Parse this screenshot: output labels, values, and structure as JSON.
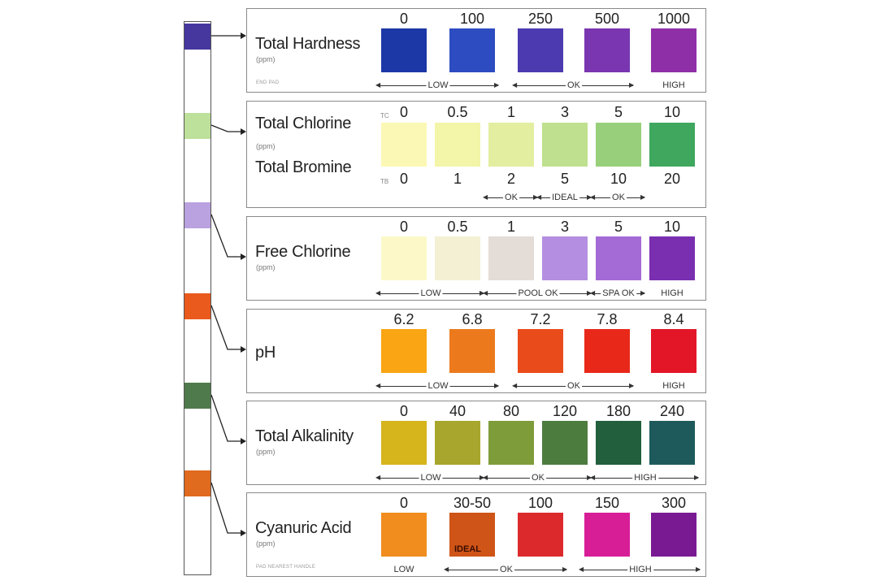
{
  "strip": {
    "pads": [
      {
        "name": "hardness",
        "color": "#46379e"
      },
      {
        "name": "chlorine",
        "color": "#bde09a"
      },
      {
        "name": "free-chlorine",
        "color": "#b9a2df"
      },
      {
        "name": "ph",
        "color": "#ea5a1c"
      },
      {
        "name": "alkalinity",
        "color": "#4f7a4b"
      },
      {
        "name": "cyanuric",
        "color": "#e06a1e"
      }
    ]
  },
  "panels": [
    {
      "id": "total-hardness",
      "title": "Total Hardness",
      "unit": "(ppm)",
      "note": "END PAD",
      "values": [
        "0",
        "100",
        "250",
        "500",
        "1000"
      ],
      "colors": [
        "#1c37a6",
        "#2e4cc1",
        "#4c3ab0",
        "#7a36b0",
        "#8f2fa8"
      ],
      "ranges": [
        {
          "label": "LOW",
          "from": 0,
          "to": 1
        },
        {
          "label": "OK",
          "from": 2,
          "to": 3
        },
        {
          "label": "HIGH",
          "from": 4,
          "to": 4
        }
      ]
    },
    {
      "id": "total-chlorine",
      "title": "Total Chlorine",
      "unit": "(ppm)",
      "title2": "Total Bromine",
      "tag_top": "TC",
      "tag_bottom": "TB",
      "values": [
        "0",
        "0.5",
        "1",
        "3",
        "5",
        "10"
      ],
      "values_bottom": [
        "0",
        "1",
        "2",
        "5",
        "10",
        "20"
      ],
      "colors": [
        "#fbf8b5",
        "#f3f5a8",
        "#e3eea0",
        "#bfe08e",
        "#98cf7a",
        "#3fa75e"
      ],
      "ranges": [
        {
          "label": "OK",
          "from": 2,
          "to": 2
        },
        {
          "label": "IDEAL",
          "from": 3,
          "to": 3
        },
        {
          "label": "OK",
          "from": 4,
          "to": 4
        }
      ]
    },
    {
      "id": "free-chlorine",
      "title": "Free Chlorine",
      "unit": "(ppm)",
      "values": [
        "0",
        "0.5",
        "1",
        "3",
        "5",
        "10"
      ],
      "colors": [
        "#fcf8c8",
        "#f3f0d4",
        "#e4dcd6",
        "#b48ee0",
        "#a46ad5",
        "#7a2fb0"
      ],
      "ranges": [
        {
          "label": "LOW",
          "from": 0,
          "to": 1
        },
        {
          "label": "POOL OK",
          "from": 2,
          "to": 3
        },
        {
          "label": "SPA OK",
          "from": 4,
          "to": 4
        },
        {
          "label": "HIGH",
          "from": 5,
          "to": 5
        }
      ]
    },
    {
      "id": "ph",
      "title": "pH",
      "unit": "",
      "values": [
        "6.2",
        "6.8",
        "7.2",
        "7.8",
        "8.4"
      ],
      "colors": [
        "#f9a514",
        "#ec7a1d",
        "#ea4b1a",
        "#e8291a",
        "#e31627"
      ],
      "ranges": [
        {
          "label": "LOW",
          "from": 0,
          "to": 1
        },
        {
          "label": "OK",
          "from": 2,
          "to": 3
        },
        {
          "label": "HIGH",
          "from": 4,
          "to": 4
        }
      ]
    },
    {
      "id": "total-alkalinity",
      "title": "Total Alkalinity",
      "unit": "(ppm)",
      "values": [
        "0",
        "40",
        "80",
        "120",
        "180",
        "240"
      ],
      "colors": [
        "#d6b41c",
        "#a8a62c",
        "#7e9c3a",
        "#4d7c3f",
        "#215f3d",
        "#1e5a5c"
      ],
      "ranges": [
        {
          "label": "LOW",
          "from": 0,
          "to": 1
        },
        {
          "label": "OK",
          "from": 2,
          "to": 3
        },
        {
          "label": "HIGH",
          "from": 4,
          "to": 5
        }
      ]
    },
    {
      "id": "cyanuric-acid",
      "title": "Cyanuric Acid",
      "unit": "(ppm)",
      "note": "PAD NEAREST HANDLE",
      "values": [
        "0",
        "30-50",
        "100",
        "150",
        "300"
      ],
      "colors": [
        "#f08d1e",
        "#cf5417",
        "#dc2a2c",
        "#d71e97",
        "#7a1a93"
      ],
      "inner_label": "IDEAL",
      "ranges": [
        {
          "label": "LOW",
          "from": 0,
          "to": 0,
          "plain": true
        },
        {
          "label": "OK",
          "from": 1,
          "to": 2
        },
        {
          "label": "HIGH",
          "from": 3,
          "to": 4
        }
      ]
    }
  ]
}
